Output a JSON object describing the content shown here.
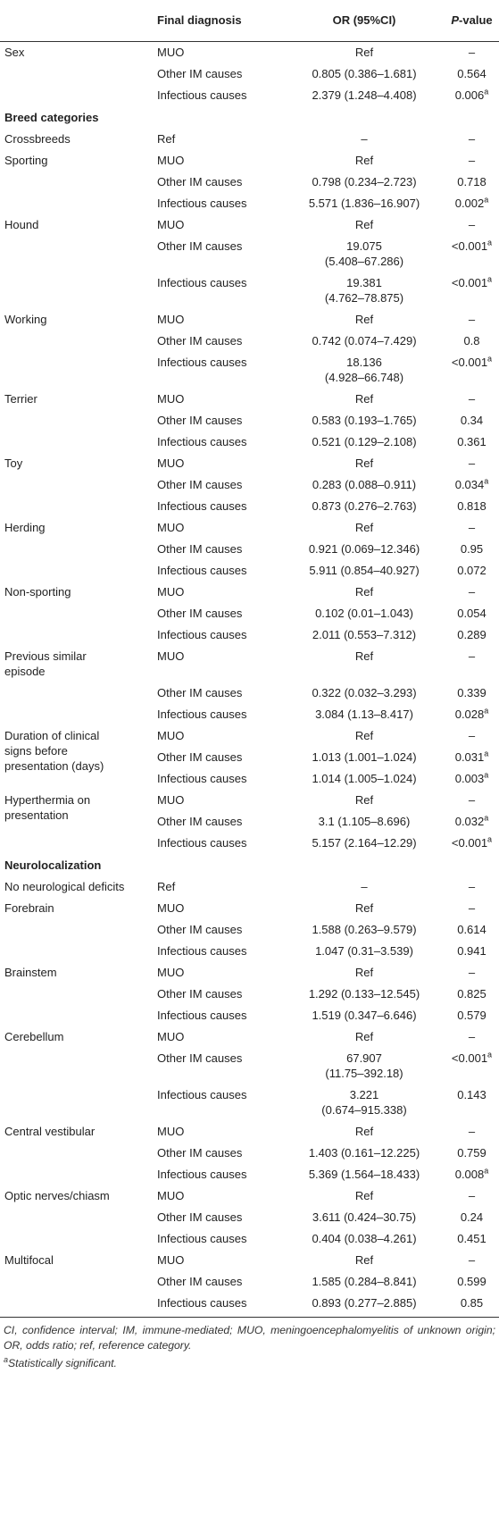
{
  "header": {
    "col1": "",
    "col2": "Final diagnosis",
    "col3": "OR (95%CI)",
    "col4_italic": "P",
    "col4_rest": "-value"
  },
  "rows": [
    {
      "type": "row",
      "var": "Sex",
      "dx": "MUO",
      "or": "Ref",
      "p": "–",
      "sig": ""
    },
    {
      "type": "row",
      "var": "",
      "dx": "Other IM causes",
      "or": "0.805 (0.386–1.681)",
      "p": "0.564",
      "sig": ""
    },
    {
      "type": "row",
      "var": "",
      "dx": "Infectious causes",
      "or": "2.379 (1.248–4.408)",
      "p": "0.006",
      "sig": "a"
    },
    {
      "type": "section",
      "label": "Breed categories"
    },
    {
      "type": "row",
      "var": "Crossbreeds",
      "dx": "Ref",
      "or": "–",
      "p": "–",
      "sig": ""
    },
    {
      "type": "row",
      "var": "Sporting",
      "dx": "MUO",
      "or": "Ref",
      "p": "–",
      "sig": ""
    },
    {
      "type": "row",
      "var": "",
      "dx": "Other IM causes",
      "or": "0.798 (0.234–2.723)",
      "p": "0.718",
      "sig": ""
    },
    {
      "type": "row",
      "var": "",
      "dx": "Infectious causes",
      "or": "5.571 (1.836–16.907)",
      "p": "0.002",
      "sig": "a"
    },
    {
      "type": "row",
      "var": "Hound",
      "dx": "MUO",
      "or": "Ref",
      "p": "–",
      "sig": ""
    },
    {
      "type": "row",
      "var": "",
      "dx": "Other IM causes",
      "or": "19.075\n(5.408–67.286)",
      "p": "<0.001",
      "sig": "a"
    },
    {
      "type": "row",
      "var": "",
      "dx": "Infectious causes",
      "or": "19.381\n(4.762–78.875)",
      "p": "<0.001",
      "sig": "a"
    },
    {
      "type": "row",
      "var": "Working",
      "dx": "MUO",
      "or": "Ref",
      "p": "–",
      "sig": ""
    },
    {
      "type": "row",
      "var": "",
      "dx": "Other IM causes",
      "or": "0.742 (0.074–7.429)",
      "p": "0.8",
      "sig": ""
    },
    {
      "type": "row",
      "var": "",
      "dx": "Infectious causes",
      "or": "18.136\n(4.928–66.748)",
      "p": "<0.001",
      "sig": "a"
    },
    {
      "type": "row",
      "var": "Terrier",
      "dx": "MUO",
      "or": "Ref",
      "p": "–",
      "sig": ""
    },
    {
      "type": "row",
      "var": "",
      "dx": "Other IM causes",
      "or": "0.583 (0.193–1.765)",
      "p": "0.34",
      "sig": ""
    },
    {
      "type": "row",
      "var": "",
      "dx": "Infectious causes",
      "or": "0.521 (0.129–2.108)",
      "p": "0.361",
      "sig": ""
    },
    {
      "type": "row",
      "var": "Toy",
      "dx": "MUO",
      "or": "Ref",
      "p": "–",
      "sig": ""
    },
    {
      "type": "row",
      "var": "",
      "dx": "Other IM causes",
      "or": "0.283 (0.088–0.911)",
      "p": "0.034",
      "sig": "a"
    },
    {
      "type": "row",
      "var": "",
      "dx": "Infectious causes",
      "or": "0.873 (0.276–2.763)",
      "p": "0.818",
      "sig": ""
    },
    {
      "type": "row",
      "var": "Herding",
      "dx": "MUO",
      "or": "Ref",
      "p": "–",
      "sig": ""
    },
    {
      "type": "row",
      "var": "",
      "dx": "Other IM causes",
      "or": "0.921 (0.069–12.346)",
      "p": "0.95",
      "sig": ""
    },
    {
      "type": "row",
      "var": "",
      "dx": "Infectious causes",
      "or": "5.911 (0.854–40.927)",
      "p": "0.072",
      "sig": ""
    },
    {
      "type": "row",
      "var": "Non-sporting",
      "dx": "MUO",
      "or": "Ref",
      "p": "–",
      "sig": ""
    },
    {
      "type": "row",
      "var": "",
      "dx": "Other IM causes",
      "or": "0.102 (0.01–1.043)",
      "p": "0.054",
      "sig": ""
    },
    {
      "type": "row",
      "var": "",
      "dx": "Infectious causes",
      "or": "2.011 (0.553–7.312)",
      "p": "0.289",
      "sig": ""
    },
    {
      "type": "row",
      "var": "Previous similar\nepisode",
      "dx": "MUO",
      "or": "Ref",
      "p": "–",
      "sig": ""
    },
    {
      "type": "row",
      "var": "",
      "dx": "Other IM causes",
      "or": "0.322 (0.032–3.293)",
      "p": "0.339",
      "sig": ""
    },
    {
      "type": "row",
      "var": "",
      "dx": "Infectious causes",
      "or": "3.084 (1.13–8.417)",
      "p": "0.028",
      "sig": "a"
    },
    {
      "type": "row",
      "var": "Duration of clinical\nsigns before\npresentation (days)",
      "dx": "MUO",
      "or": "Ref",
      "p": "–",
      "sig": "",
      "span": 3
    },
    {
      "type": "row",
      "var": null,
      "dx": "Other IM causes",
      "or": "1.013 (1.001–1.024)",
      "p": "0.031",
      "sig": "a"
    },
    {
      "type": "row",
      "var": null,
      "dx": "Infectious causes",
      "or": "1.014 (1.005–1.024)",
      "p": "0.003",
      "sig": "a"
    },
    {
      "type": "row",
      "var": "Hyperthermia on\npresentation",
      "dx": "MUO",
      "or": "Ref",
      "p": "–",
      "sig": "",
      "span": 2
    },
    {
      "type": "row",
      "var": null,
      "dx": "Other IM causes",
      "or": "3.1 (1.105–8.696)",
      "p": "0.032",
      "sig": "a"
    },
    {
      "type": "row",
      "var": "",
      "dx": "Infectious causes",
      "or": "5.157 (2.164–12.29)",
      "p": "<0.001",
      "sig": "a"
    },
    {
      "type": "section",
      "label": "Neurolocalization"
    },
    {
      "type": "row",
      "var": "No neurological deficits",
      "dx": "Ref",
      "or": "–",
      "p": "–",
      "sig": ""
    },
    {
      "type": "row",
      "var": "Forebrain",
      "dx": "MUO",
      "or": "Ref",
      "p": "–",
      "sig": ""
    },
    {
      "type": "row",
      "var": "",
      "dx": "Other IM causes",
      "or": "1.588 (0.263–9.579)",
      "p": "0.614",
      "sig": ""
    },
    {
      "type": "row",
      "var": "",
      "dx": "Infectious causes",
      "or": "1.047 (0.31–3.539)",
      "p": "0.941",
      "sig": ""
    },
    {
      "type": "row",
      "var": "Brainstem",
      "dx": "MUO",
      "or": "Ref",
      "p": "–",
      "sig": ""
    },
    {
      "type": "row",
      "var": "",
      "dx": "Other IM causes",
      "or": "1.292 (0.133–12.545)",
      "p": "0.825",
      "sig": ""
    },
    {
      "type": "row",
      "var": "",
      "dx": "Infectious causes",
      "or": "1.519 (0.347–6.646)",
      "p": "0.579",
      "sig": ""
    },
    {
      "type": "row",
      "var": "Cerebellum",
      "dx": "MUO",
      "or": "Ref",
      "p": "–",
      "sig": ""
    },
    {
      "type": "row",
      "var": "",
      "dx": "Other IM causes",
      "or": "67.907\n(11.75–392.18)",
      "p": "<0.001",
      "sig": "a"
    },
    {
      "type": "row",
      "var": "",
      "dx": "Infectious causes",
      "or": "3.221\n(0.674–915.338)",
      "p": "0.143",
      "sig": ""
    },
    {
      "type": "row",
      "var": "Central vestibular",
      "dx": "MUO",
      "or": "Ref",
      "p": "–",
      "sig": ""
    },
    {
      "type": "row",
      "var": "",
      "dx": "Other IM causes",
      "or": "1.403 (0.161–12.225)",
      "p": "0.759",
      "sig": ""
    },
    {
      "type": "row",
      "var": "",
      "dx": "Infectious causes",
      "or": "5.369 (1.564–18.433)",
      "p": "0.008",
      "sig": "a"
    },
    {
      "type": "row",
      "var": "Optic nerves/chiasm",
      "dx": "MUO",
      "or": "Ref",
      "p": "–",
      "sig": ""
    },
    {
      "type": "row",
      "var": "",
      "dx": "Other IM causes",
      "or": "3.611 (0.424–30.75)",
      "p": "0.24",
      "sig": ""
    },
    {
      "type": "row",
      "var": "",
      "dx": "Infectious causes",
      "or": "0.404 (0.038–4.261)",
      "p": "0.451",
      "sig": ""
    },
    {
      "type": "row",
      "var": "Multifocal",
      "dx": "MUO",
      "or": "Ref",
      "p": "–",
      "sig": ""
    },
    {
      "type": "row",
      "var": "",
      "dx": "Other IM causes",
      "or": "1.585 (0.284–8.841)",
      "p": "0.599",
      "sig": ""
    },
    {
      "type": "row",
      "var": "",
      "dx": "Infectious causes",
      "or": "0.893 (0.277–2.885)",
      "p": "0.85",
      "sig": ""
    }
  ],
  "footer": {
    "abbreviations": "CI, confidence interval; IM, immune-mediated; MUO, meningoencephalomyelitis of unknown origin; OR, odds ratio; ref, reference category.",
    "sig_marker": "a",
    "sig_note": "Statistically significant."
  }
}
